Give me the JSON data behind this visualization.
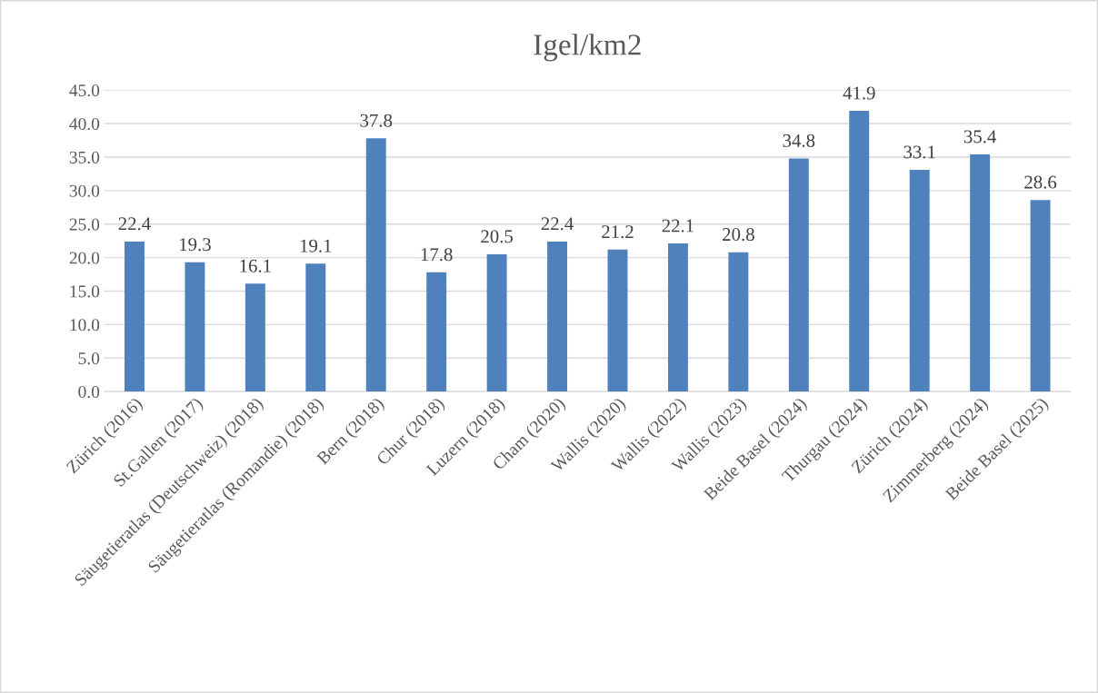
{
  "chart_data": {
    "type": "bar",
    "title": "Igel/km2",
    "categories": [
      "Zürich (2016)",
      "St.Gallen (2017)",
      "Säugetieratlas (Deutschweiz) (2018)",
      "Säugetieratlas (Romandie) (2018)",
      "Bern (2018)",
      "Chur (2018)",
      "Luzern (2018)",
      "Cham (2020)",
      "Wallis (2020)",
      "Wallis (2022)",
      "Wallis (2023)",
      "Beide Basel (2024)",
      "Thurgau (2024)",
      "Zürich (2024)",
      "Zimmerberg (2024)",
      "Beide Basel (2025)"
    ],
    "values": [
      22.4,
      19.3,
      16.1,
      19.1,
      37.8,
      17.8,
      20.5,
      22.4,
      21.2,
      22.1,
      20.8,
      34.8,
      41.9,
      33.1,
      35.4,
      28.6
    ],
    "color": "#4f81bd",
    "ylim": [
      0,
      45
    ],
    "yticks": [
      {
        "value": 0,
        "label": "0.0"
      },
      {
        "value": 5,
        "label": "5.0"
      },
      {
        "value": 10,
        "label": "10.0"
      },
      {
        "value": 15,
        "label": "15.0"
      },
      {
        "value": 20,
        "label": "20.0"
      },
      {
        "value": 25,
        "label": "25.0"
      },
      {
        "value": 30,
        "label": "30.0"
      },
      {
        "value": 35,
        "label": "35.0"
      },
      {
        "value": 40,
        "label": "40.0"
      },
      {
        "value": 45,
        "label": "45.0"
      }
    ],
    "grid": "y",
    "data_labels": true,
    "legend": false
  }
}
